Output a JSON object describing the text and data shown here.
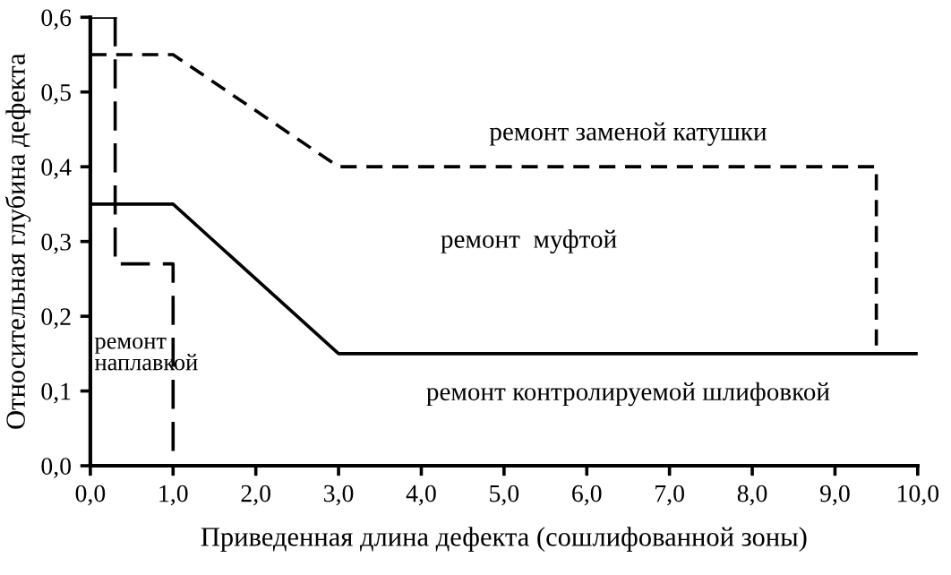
{
  "chart_data": {
    "type": "line",
    "xlabel": "Приведенная длина дефекта (сошлифованной зоны)",
    "ylabel": "Относительная глубина дефекта",
    "xlim": [
      0,
      10
    ],
    "ylim": [
      0,
      0.6
    ],
    "xticks": [
      {
        "value": 0,
        "label": "0,0"
      },
      {
        "value": 1,
        "label": "1,0"
      },
      {
        "value": 2,
        "label": "2,0"
      },
      {
        "value": 3,
        "label": "3,0"
      },
      {
        "value": 4,
        "label": "4,0"
      },
      {
        "value": 5,
        "label": "5,0"
      },
      {
        "value": 6,
        "label": "6,0"
      },
      {
        "value": 7,
        "label": "7,0"
      },
      {
        "value": 8,
        "label": "8,0"
      },
      {
        "value": 9,
        "label": "9,0"
      },
      {
        "value": 10,
        "label": "10,0"
      }
    ],
    "yticks": [
      {
        "value": 0,
        "label": "0,0"
      },
      {
        "value": 0.1,
        "label": "0,1"
      },
      {
        "value": 0.2,
        "label": "0,2"
      },
      {
        "value": 0.3,
        "label": "0,3"
      },
      {
        "value": 0.4,
        "label": "0,4"
      },
      {
        "value": 0.5,
        "label": "0,5"
      },
      {
        "value": 0.6,
        "label": "0,6"
      }
    ],
    "grid": false,
    "legend": false,
    "marker": "none",
    "series": [
      {
        "color": "#000000",
        "line_style": "solid",
        "x": [
          0,
          0.3
        ],
        "values": [
          0.6,
          0.6
        ]
      },
      {
        "color": "#000000",
        "line_style": "dashed",
        "x": [
          0.3,
          0.3,
          1.0,
          1.0
        ],
        "values": [
          0.6,
          0.27,
          0.27,
          0.0
        ]
      },
      {
        "color": "#000000",
        "line_style": "dashed",
        "x": [
          0,
          1.0,
          3.0,
          9.5,
          9.5
        ],
        "values": [
          0.55,
          0.55,
          0.4,
          0.4,
          0.15
        ]
      },
      {
        "color": "#000000",
        "line_style": "solid",
        "x": [
          0,
          1.0,
          3.0,
          10.0
        ],
        "values": [
          0.35,
          0.35,
          0.15,
          0.15
        ]
      }
    ],
    "annotations": [
      "ремонт заменой катушки",
      "ремонт  муфтой",
      "ремонт\nнаплавкой",
      "ремонт контролируемой шлифовкой"
    ]
  }
}
